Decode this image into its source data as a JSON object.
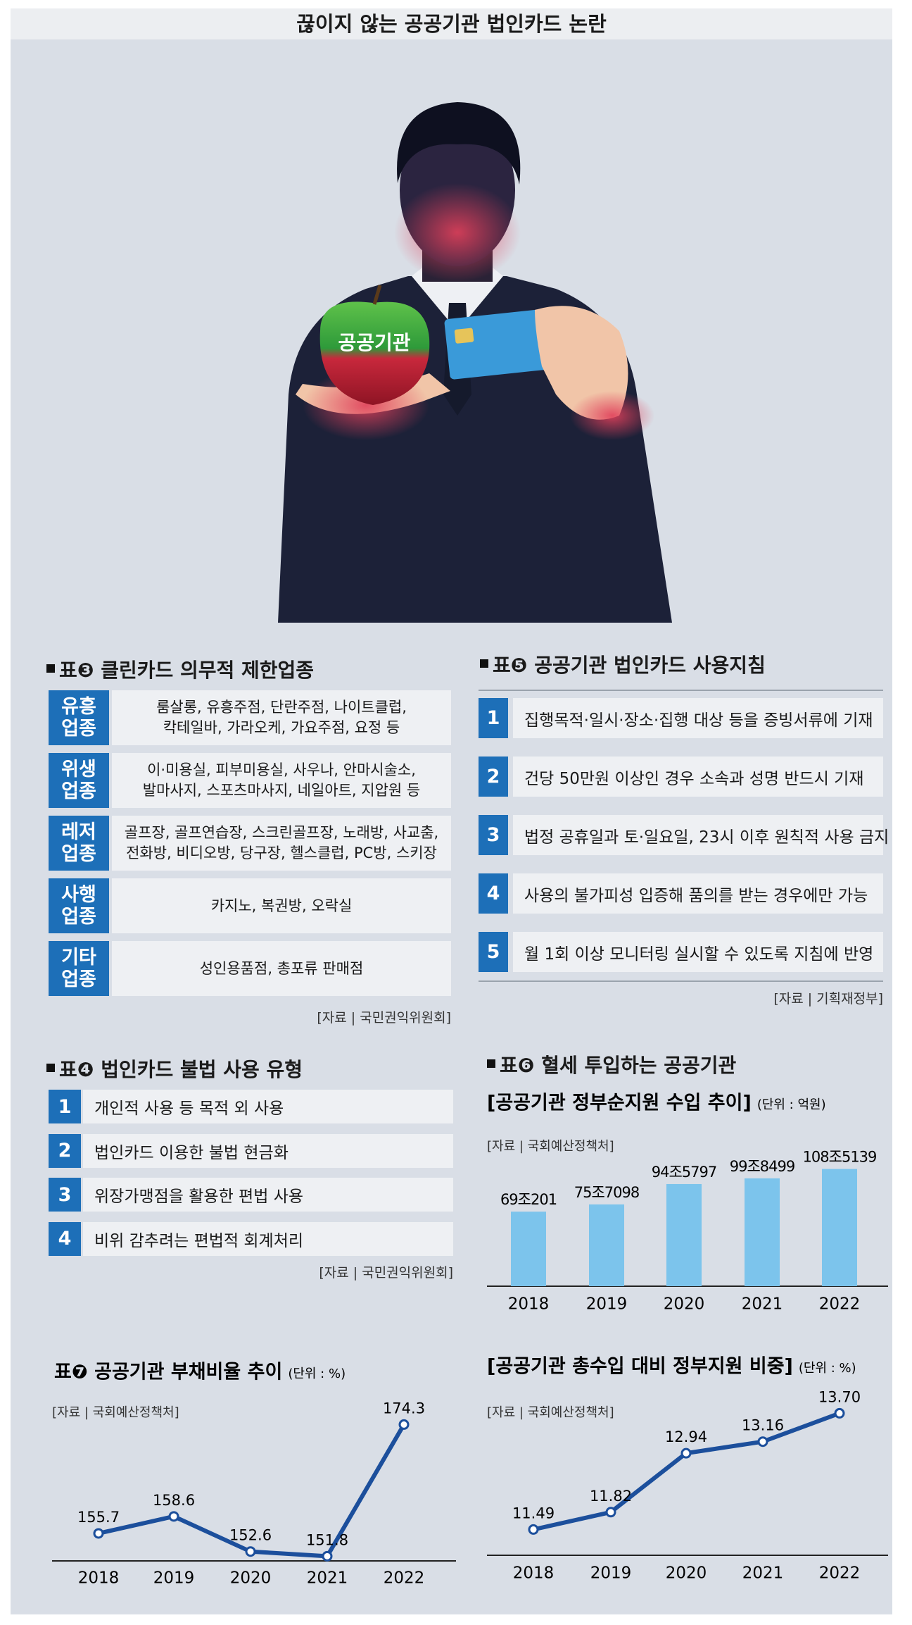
{
  "title": "끊이지 않는 공공기관 법인카드 논란",
  "illustration": {
    "apple_label": "공공기관"
  },
  "table3": {
    "title": "표❸ 클린카드 의무적 제한업종",
    "rows": [
      {
        "category": "유흥\n업종",
        "items": "룸살롱, 유흥주점, 단란주점, 나이트클럽,\n칵테일바, 가라오케, 가요주점, 요정 등"
      },
      {
        "category": "위생\n업종",
        "items": "이·미용실, 피부미용실, 사우나, 안마시술소,\n발마사지, 스포츠마사지, 네일아트, 지압원 등"
      },
      {
        "category": "레저\n업종",
        "items": "골프장, 골프연습장, 스크린골프장, 노래방, 사교춤,\n전화방, 비디오방, 당구장, 헬스클럽, PC방, 스키장"
      },
      {
        "category": "사행\n업종",
        "items": "카지노, 복권방, 오락실"
      },
      {
        "category": "기타\n업종",
        "items": "성인용품점, 총포류 판매점"
      }
    ],
    "source": "[자료 | 국민권익위원회]"
  },
  "table5": {
    "title": "표❺ 공공기관 법인카드 사용지침",
    "rows": [
      {
        "no": "1",
        "text": "집행목적·일시·장소·집행 대상 등을 증빙서류에 기재"
      },
      {
        "no": "2",
        "text": "건당 50만원 이상인 경우 소속과 성명 반드시 기재"
      },
      {
        "no": "3",
        "text": "법정 공휴일과 토·일요일, 23시 이후 원칙적 사용 금지"
      },
      {
        "no": "4",
        "text": "사용의 불가피성 입증해 품의를 받는 경우에만 가능"
      },
      {
        "no": "5",
        "text": "월 1회 이상 모니터링 실시할 수 있도록 지침에 반영"
      }
    ],
    "source": "[자료 | 기획재정부]"
  },
  "table4": {
    "title": "표❹ 법인카드 불법 사용 유형",
    "rows": [
      {
        "no": "1",
        "text": "개인적 사용 등 목적 외 사용"
      },
      {
        "no": "2",
        "text": "법인카드 이용한 불법 현금화"
      },
      {
        "no": "3",
        "text": "위장가맹점을 활용한 편법 사용"
      },
      {
        "no": "4",
        "text": "비위 감추려는 편법적 회계처리"
      }
    ],
    "source": "[자료 | 국민권익위원회]"
  },
  "chart_data": [
    {
      "type": "bar",
      "section_title": "표❻ 혈세 투입하는 공공기관",
      "title": "[공공기관 정부순지원 수입 추이]",
      "unit": "(단위 : 억원)",
      "source": "[자료 | 국회예산정책처]",
      "categories": [
        "2018",
        "2019",
        "2020",
        "2021",
        "2022"
      ],
      "values": [
        690201,
        757098,
        945797,
        998499,
        1085139
      ],
      "value_labels": [
        "69조201",
        "75조7098",
        "94조5797",
        "99조8499",
        "108조5139"
      ],
      "color": "#7cc4ec",
      "ylim": [
        0,
        1200000
      ]
    },
    {
      "type": "line",
      "title": "표❼ 공공기관 부채비율 추이",
      "unit": "(단위 : %)",
      "source": "[자료 | 국회예산정책처]",
      "categories": [
        "2018",
        "2019",
        "2020",
        "2021",
        "2022"
      ],
      "values": [
        155.7,
        158.6,
        152.6,
        151.8,
        174.3
      ],
      "color": "#1c4f9c",
      "ylim": [
        151,
        177
      ]
    },
    {
      "type": "line",
      "title": "[공공기관 총수입 대비 정부지원 비중]",
      "unit": "(단위 : %)",
      "source": "[자료 | 국회예산정책처]",
      "categories": [
        "2018",
        "2019",
        "2020",
        "2021",
        "2022"
      ],
      "values": [
        11.49,
        11.82,
        12.94,
        13.16,
        13.7
      ],
      "value_labels": [
        "11.49",
        "11.82",
        "12.94",
        "13.16",
        "13.70"
      ],
      "color": "#1c4f9c",
      "ylim": [
        11,
        14
      ]
    }
  ]
}
